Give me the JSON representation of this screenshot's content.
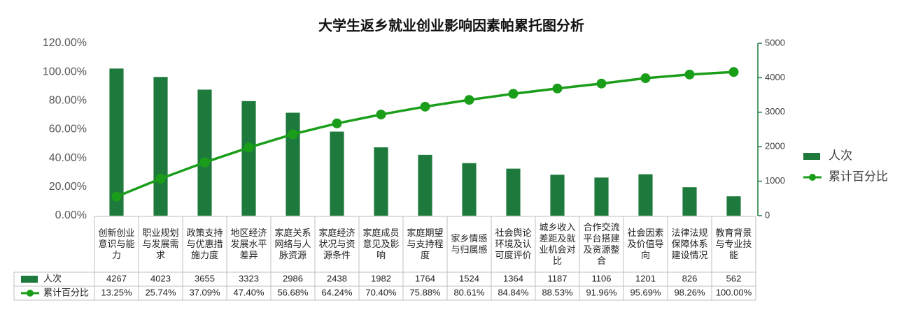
{
  "chart_data": {
    "type": "pareto",
    "title": "大学生返乡就业创业影响因素帕累托图分析",
    "categories": [
      "创新创业意识与能力",
      "职业规划与发展需求",
      "政策支持与优惠措施力度",
      "地区经济发展水平差异",
      "家庭关系网络与人脉资源",
      "家庭经济状况与资源条件",
      "家庭成员意见及影响",
      "家庭期望与支持程度",
      "家乡情感与归属感",
      "社会舆论环境及认可度评价",
      "城乡收入差距及就业机会对比",
      "合作交流平台搭建及资源整合",
      "社会因素及价值导向",
      "法律法规保障体系建设情况",
      "教育背景与专业技能"
    ],
    "series": [
      {
        "name": "人次",
        "type": "bar",
        "axis": "y2",
        "color": "#1e7a3c",
        "values": [
          4267,
          4023,
          3655,
          3323,
          2986,
          2438,
          1982,
          1764,
          1524,
          1364,
          1187,
          1106,
          1201,
          826,
          562
        ]
      },
      {
        "name": "累计百分比",
        "type": "line",
        "axis": "y",
        "color": "#1a9e1a",
        "values": [
          13.25,
          25.74,
          37.09,
          47.4,
          56.68,
          64.24,
          70.4,
          75.88,
          80.61,
          84.84,
          88.53,
          91.96,
          95.69,
          98.26,
          100.0
        ],
        "value_labels": [
          "13.25%",
          "25.74%",
          "37.09%",
          "47.40%",
          "56.68%",
          "64.24%",
          "70.40%",
          "75.88%",
          "80.61%",
          "84.84%",
          "88.53%",
          "91.96%",
          "95.69%",
          "98.26%",
          "100.00%"
        ]
      }
    ],
    "ylim": [
      0,
      120
    ],
    "yticks": [
      {
        "value": 0,
        "label": "0.00%"
      },
      {
        "value": 20,
        "label": "20.00%"
      },
      {
        "value": 40,
        "label": "40.00%"
      },
      {
        "value": 60,
        "label": "60.00%"
      },
      {
        "value": 80,
        "label": "80.00%"
      },
      {
        "value": 100,
        "label": "100.00%"
      },
      {
        "value": 120,
        "label": "120.00%"
      }
    ],
    "y2lim": [
      0,
      5000
    ],
    "y2ticks": [
      0,
      1000,
      2000,
      3000,
      4000,
      5000
    ],
    "legend": "right"
  }
}
